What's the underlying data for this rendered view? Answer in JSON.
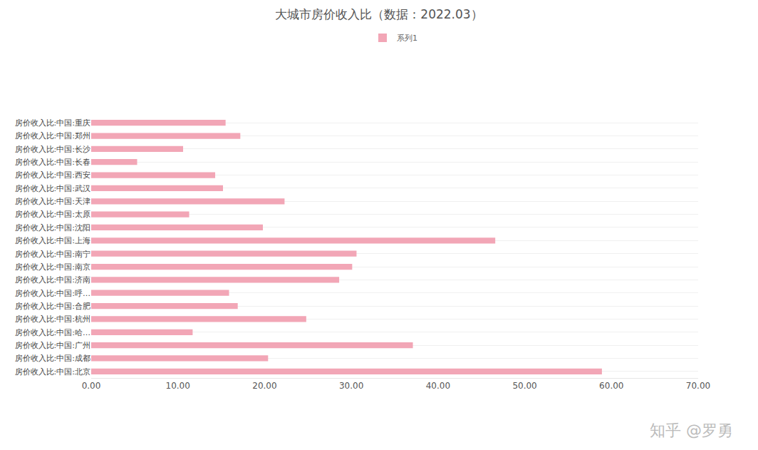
{
  "chart_data": {
    "type": "bar",
    "orientation": "horizontal",
    "title": "大城市房价收入比（数据：2022.03）",
    "categories": [
      "房价收入比:中国:北京",
      "房价收入比:中国:成都",
      "房价收入比:中国:广州",
      "房价收入比:中国:哈…",
      "房价收入比:中国:杭州",
      "房价收入比:中国:合肥",
      "房价收入比:中国:呼…",
      "房价收入比:中国:济南",
      "房价收入比:中国:南京",
      "房价收入比:中国:南宁",
      "房价收入比:中国:上海",
      "房价收入比:中国:沈阳",
      "房价收入比:中国:太原",
      "房价收入比:中国:天津",
      "房价收入比:中国:武汉",
      "房价收入比:中国:西安",
      "房价收入比:中国:长春",
      "房价收入比:中国:长沙",
      "房价收入比:中国:郑州",
      "房价收入比:中国:重庆"
    ],
    "series": [
      {
        "name": "系列1",
        "color": "#f2a6b6",
        "values": [
          58.9,
          20.4,
          37.1,
          11.7,
          24.8,
          16.9,
          15.9,
          28.6,
          30.1,
          30.6,
          46.6,
          19.8,
          11.3,
          22.3,
          15.2,
          14.3,
          5.3,
          10.6,
          17.2,
          15.5
        ]
      }
    ],
    "xlim": [
      0,
      70
    ],
    "xticks": [
      {
        "value": 0,
        "label": "0.00"
      },
      {
        "value": 10,
        "label": "10.00"
      },
      {
        "value": 20,
        "label": "20.00"
      },
      {
        "value": 30,
        "label": "30.00"
      },
      {
        "value": 40,
        "label": "40.00"
      },
      {
        "value": 50,
        "label": "50.00"
      },
      {
        "value": 60,
        "label": "60.00"
      },
      {
        "value": 70,
        "label": "70.00"
      }
    ],
    "grid": true,
    "legend": "top",
    "annotations": [
      "知乎 @罗勇"
    ]
  }
}
